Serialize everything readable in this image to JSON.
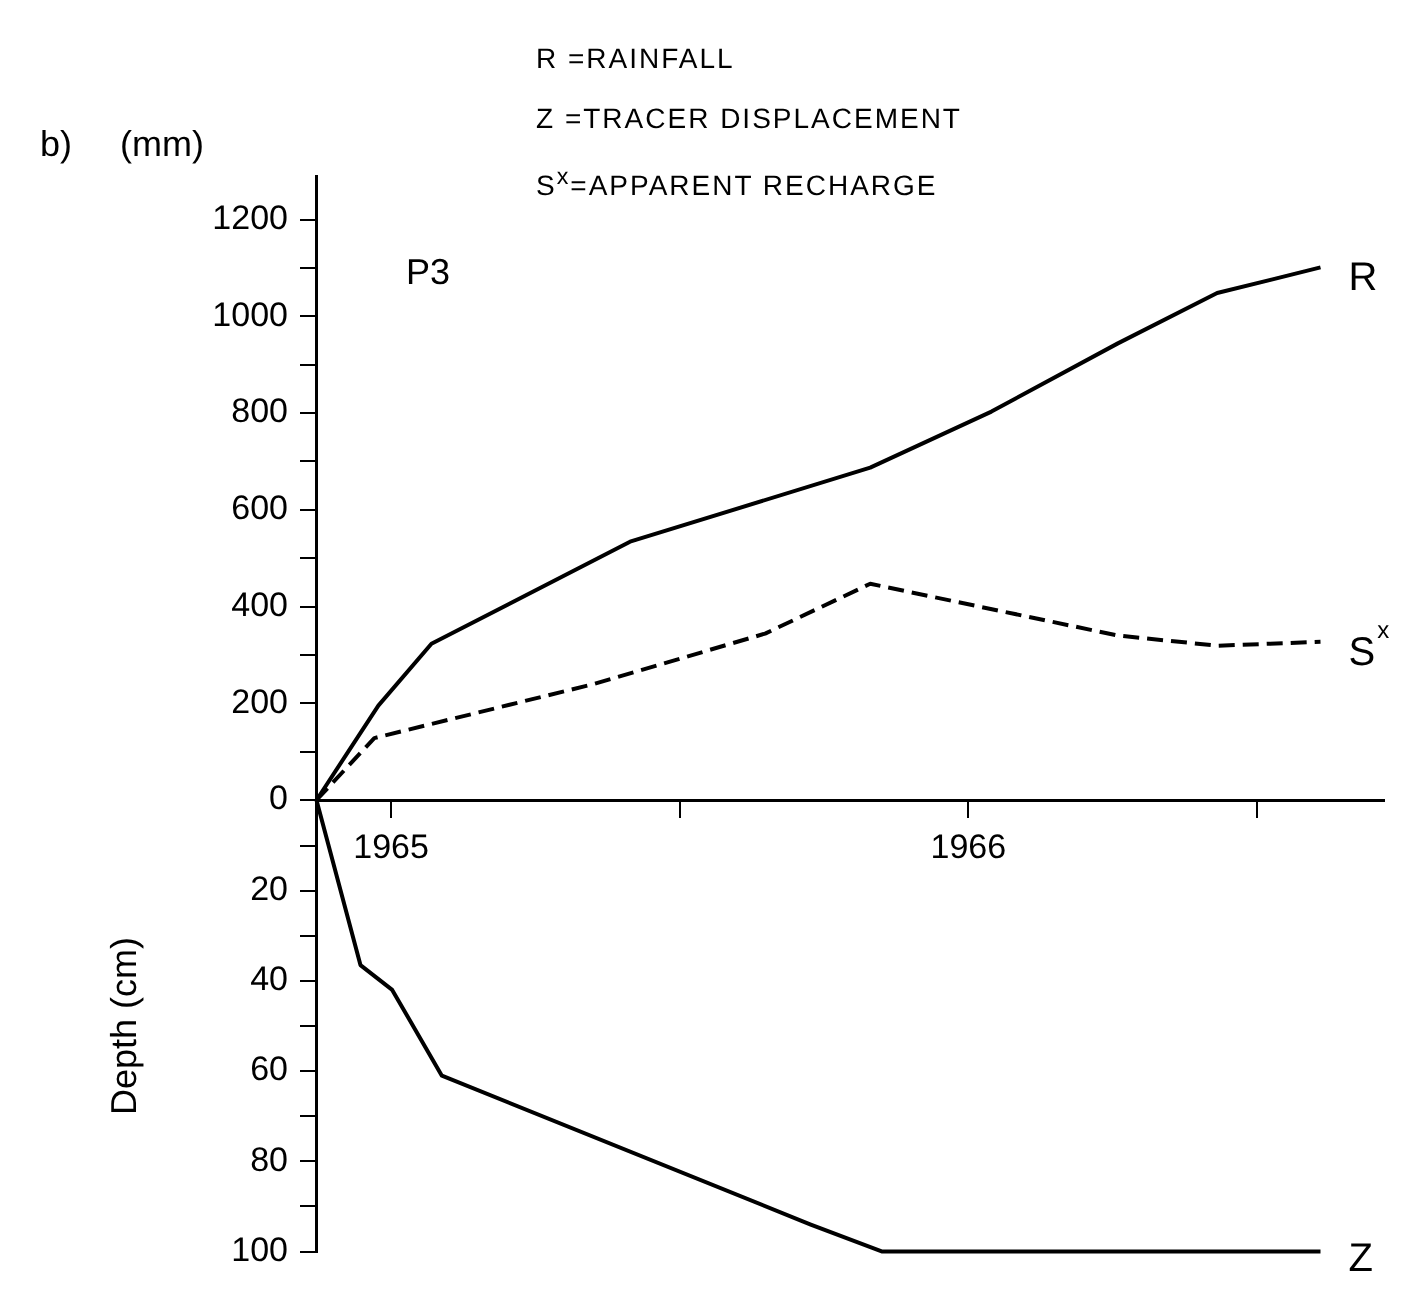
{
  "chart_data": [
    {
      "type": "line",
      "ylabel": "(mm)",
      "annotations": [
        "b)",
        "P3",
        "R =RAINFALL",
        "Z =TRACER DISPLACEMENT",
        "S$^{x}$=APPARENT RECHARGE"
      ],
      "xlim": [
        1965.37,
        1967.22
      ],
      "xticks": [
        {
          "value": 1965.5,
          "label": null
        },
        {
          "value": 1966,
          "label": null
        },
        {
          "value": 1966.5,
          "label": null
        },
        {
          "value": 1967,
          "label": null
        }
      ],
      "ylim": [
        0,
        1290
      ],
      "yticks": [
        0,
        {
          "value": 100,
          "label": null
        },
        200,
        {
          "value": 300,
          "label": null
        },
        400,
        {
          "value": 500,
          "label": null
        },
        600,
        {
          "value": 700,
          "label": null
        },
        800,
        {
          "value": 900,
          "label": null
        },
        1000,
        {
          "value": 1100,
          "label": null
        },
        1200
      ],
      "tick_labels": "y",
      "grid": false,
      "legend": false,
      "series": [
        {
          "name": "R",
          "color": "#000000",
          "line_style": "solid",
          "x": [
            1965.371,
            1965.478,
            1965.57,
            1965.914,
            1966.33,
            1966.54,
            1966.759,
            1966.931,
            1967.11
          ],
          "values": [
            0,
            195,
            323,
            534,
            687,
            803,
            944,
            1048,
            1101
          ]
        },
        {
          "name": "S$^{x}$",
          "color": "#000000",
          "line_style": "dashed",
          "x": [
            1965.371,
            1965.471,
            1965.852,
            1966.148,
            1966.33,
            1966.759,
            1966.931,
            1967.11
          ],
          "values": [
            0,
            128,
            240,
            344,
            447,
            340,
            319,
            327
          ]
        }
      ]
    },
    {
      "type": "line",
      "ylabel": "Depth (cm)",
      "xlim": [
        1965.37,
        1967.22
      ],
      "xticks": [
        {
          "value": 1965.5,
          "label": "1965"
        },
        {
          "value": 1966,
          "label": null
        },
        {
          "value": 1966.5,
          "label": "1966"
        },
        {
          "value": 1967,
          "label": null
        }
      ],
      "ylim": [
        100,
        0
      ],
      "yticks": [
        {
          "value": 0,
          "label": null
        },
        {
          "value": 10,
          "label": null
        },
        20,
        {
          "value": 30,
          "label": null
        },
        40,
        {
          "value": 50,
          "label": null
        },
        60,
        {
          "value": 70,
          "label": null
        },
        80,
        {
          "value": 90,
          "label": null
        },
        100
      ],
      "grid": false,
      "legend": false,
      "series": [
        {
          "name": "Z",
          "color": "#000000",
          "line_style": "solid",
          "x": [
            1965.371,
            1965.447,
            1965.502,
            1965.588,
            1966.227,
            1966.351,
            1967.11
          ],
          "values": [
            0,
            36.5,
            42,
            61,
            94,
            100,
            100
          ]
        }
      ]
    }
  ]
}
